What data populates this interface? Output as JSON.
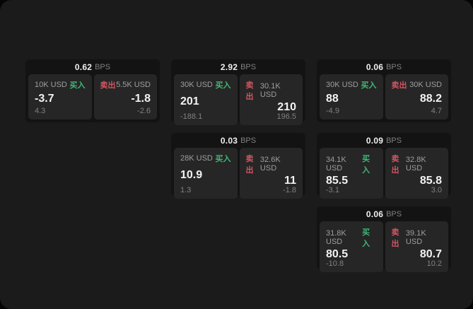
{
  "theme": {
    "background": "#050505",
    "surface": "#1b1b1b",
    "card_bg": "#131313",
    "panel_bg": "#262626",
    "buy_color": "#40b875",
    "sell_color": "#d15563"
  },
  "labels": {
    "buy": "买入",
    "sell": "卖出",
    "bps": "BPS"
  },
  "cards": [
    {
      "spread": "0.62",
      "buy": {
        "size": "10K USD",
        "price": "-3.7",
        "change": "4.3"
      },
      "sell": {
        "size": "5.5K USD",
        "price": "-1.8",
        "change": "-2.6"
      }
    },
    {
      "spread": "2.92",
      "buy": {
        "size": "30K USD",
        "price": "201",
        "change": "-188.1"
      },
      "sell": {
        "size": "30.1K USD",
        "price": "210",
        "change": "196.5"
      }
    },
    {
      "spread": "0.06",
      "buy": {
        "size": "30K USD",
        "price": "88",
        "change": "-4.9"
      },
      "sell": {
        "size": "30K USD",
        "price": "88.2",
        "change": "4.7"
      }
    },
    {
      "spread": "0.03",
      "buy": {
        "size": "28K USD",
        "price": "10.9",
        "change": "1.3"
      },
      "sell": {
        "size": "32.6K USD",
        "price": "11",
        "change": "-1.8"
      }
    },
    {
      "spread": "0.09",
      "buy": {
        "size": "34.1K USD",
        "price": "85.5",
        "change": "-3.1"
      },
      "sell": {
        "size": "32.8K USD",
        "price": "85.8",
        "change": "3.0"
      }
    },
    {
      "spread": "0.06",
      "buy": {
        "size": "31.8K USD",
        "price": "80.5",
        "change": "-10.8"
      },
      "sell": {
        "size": "39.1K USD",
        "price": "80.7",
        "change": "10.2"
      }
    }
  ]
}
